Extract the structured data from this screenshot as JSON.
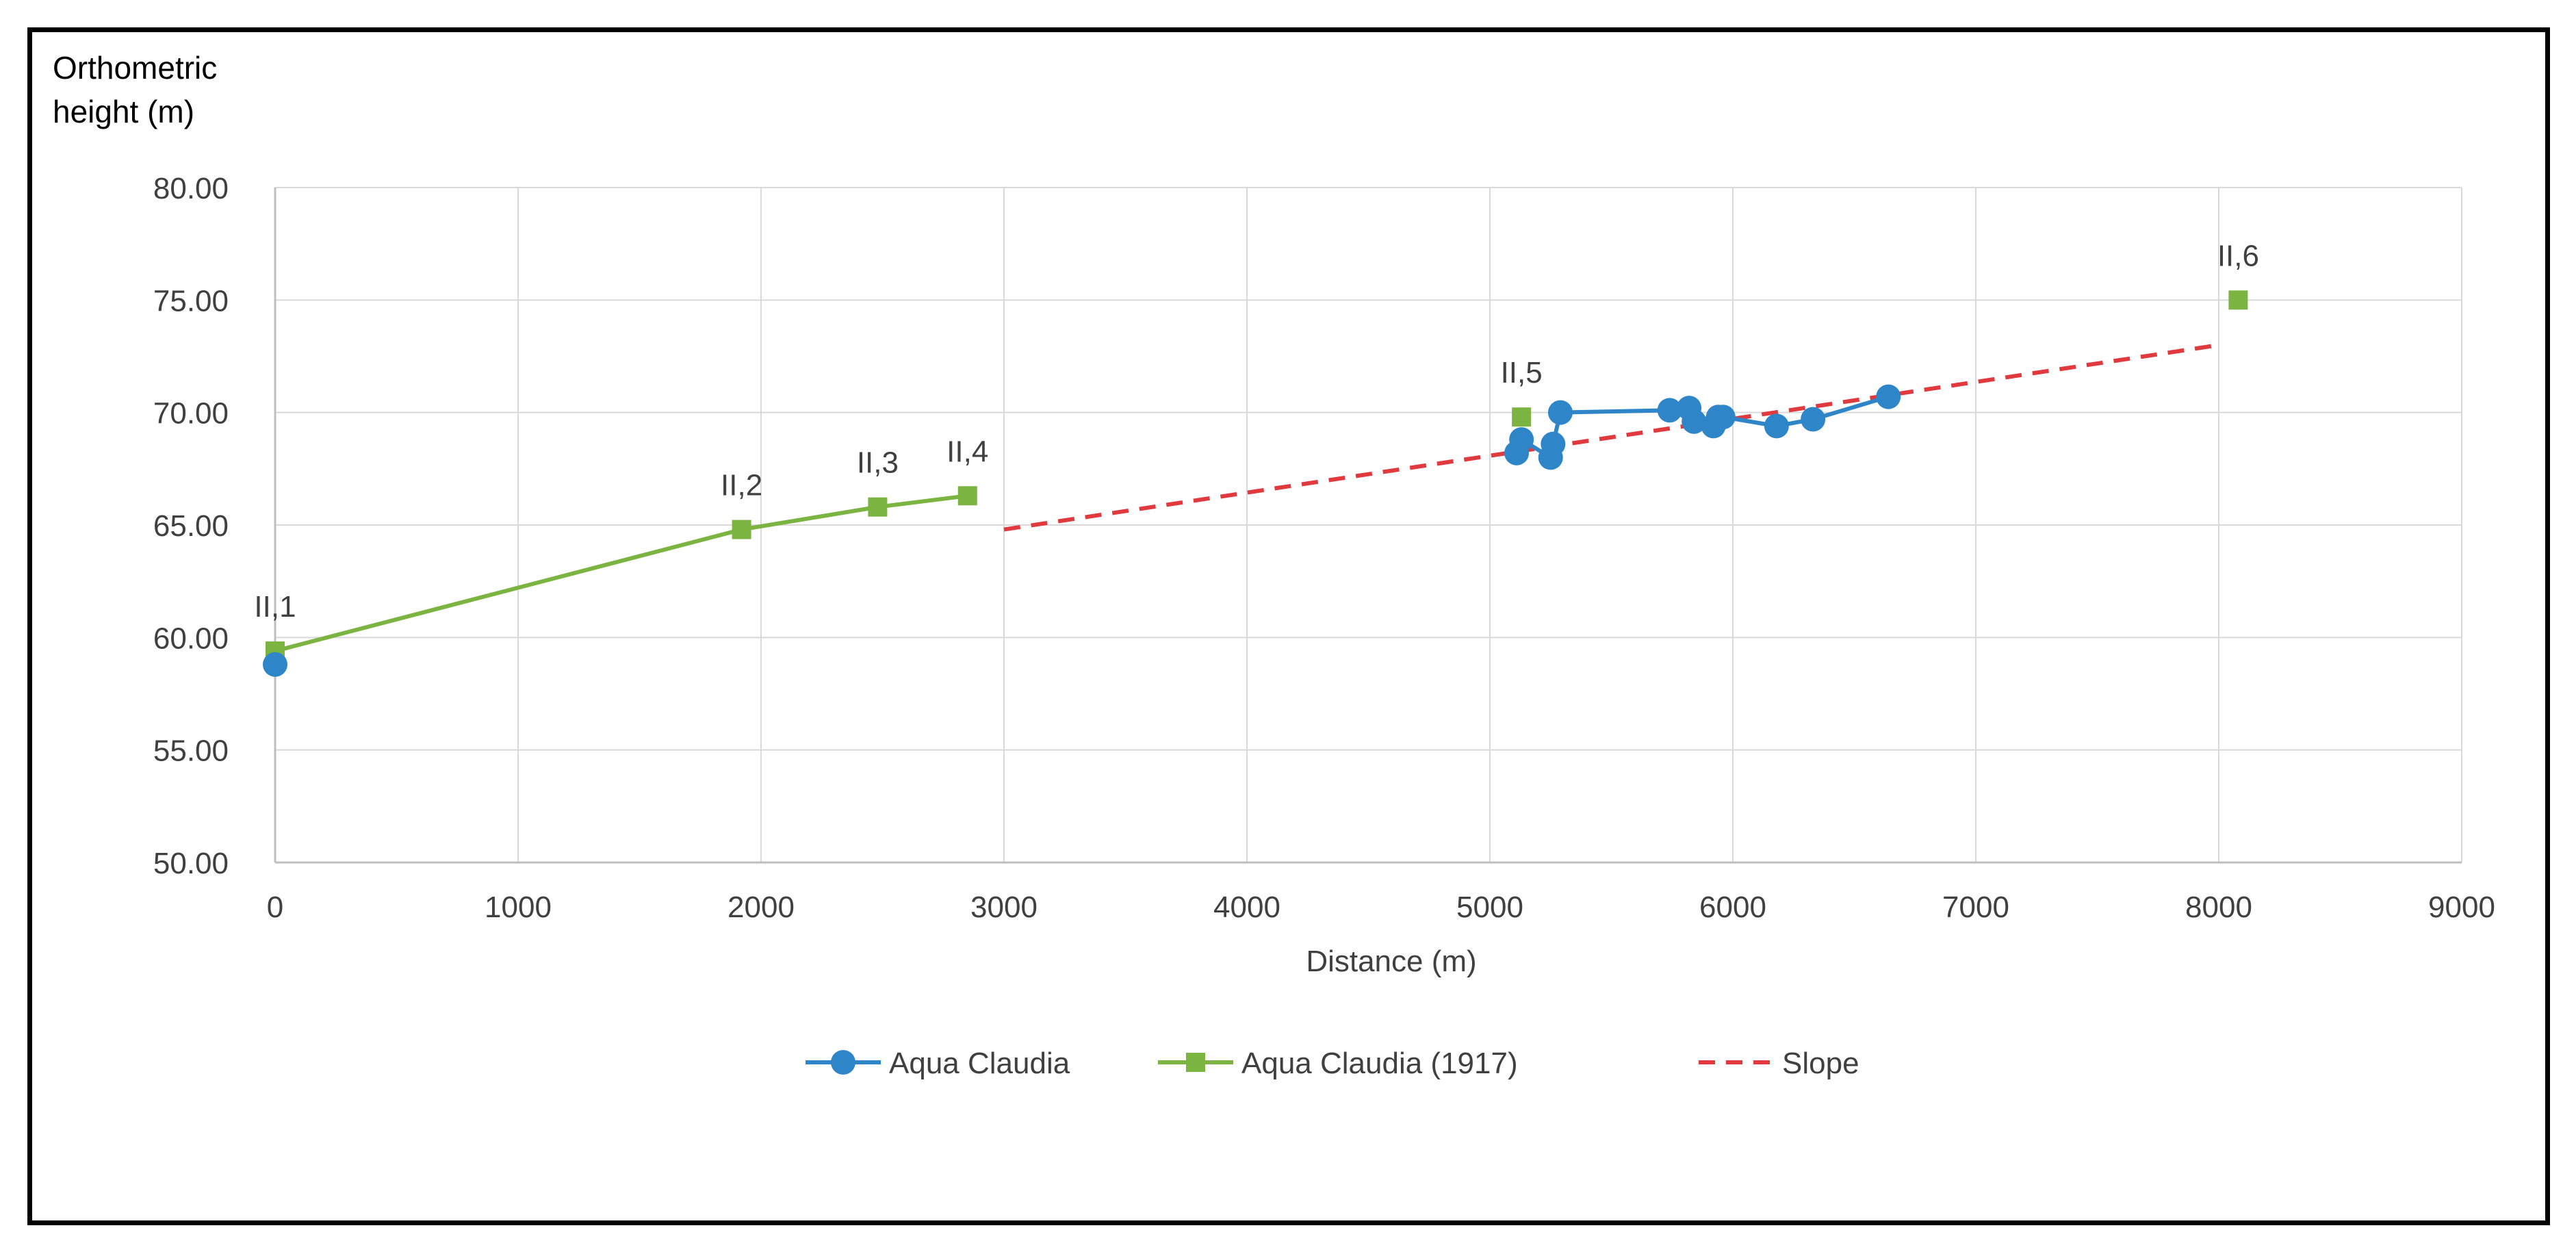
{
  "chart_data": {
    "type": "line",
    "ylabel": [
      "Orthometric",
      "height (m)"
    ],
    "xlabel": "Distance (m)",
    "xlim": [
      0,
      9000
    ],
    "ylim": [
      50,
      80
    ],
    "x_ticks": [
      "0",
      "1000",
      "2000",
      "3000",
      "4000",
      "5000",
      "6000",
      "7000",
      "8000",
      "9000"
    ],
    "y_ticks": [
      "50.00",
      "55.00",
      "60.00",
      "65.00",
      "70.00",
      "75.00",
      "80.00"
    ],
    "grid": true,
    "legend_position": "bottom",
    "series": [
      {
        "name": "Aqua Claudia",
        "color": "#2E86C8",
        "marker": "circle",
        "segments": [
          [
            [
              0,
              58.8
            ]
          ],
          [
            [
              5110,
              68.2
            ],
            [
              5130,
              68.8
            ],
            [
              5250,
              68.0
            ],
            [
              5260,
              68.6
            ],
            [
              5290,
              70.0
            ],
            [
              5740,
              70.1
            ],
            [
              5820,
              70.2
            ],
            [
              5840,
              69.6
            ],
            [
              5920,
              69.4
            ],
            [
              5940,
              69.8
            ],
            [
              5960,
              69.8
            ],
            [
              6180,
              69.4
            ],
            [
              6330,
              69.7
            ],
            [
              6640,
              70.7
            ]
          ]
        ]
      },
      {
        "name": "Aqua Claudia (1917)",
        "color": "#7CB442",
        "marker": "square",
        "segments": [
          [
            [
              0,
              59.4
            ],
            [
              1920,
              64.8
            ],
            [
              2480,
              65.8
            ],
            [
              2850,
              66.3
            ]
          ],
          [
            [
              5130,
              69.8
            ]
          ],
          [
            [
              8080,
              75.0
            ]
          ]
        ],
        "point_labels": [
          {
            "x": 0,
            "y": 59.4,
            "text": "II,1"
          },
          {
            "x": 1920,
            "y": 64.8,
            "text": "II,2"
          },
          {
            "x": 2480,
            "y": 65.8,
            "text": "II,3"
          },
          {
            "x": 2850,
            "y": 66.3,
            "text": "II,4"
          },
          {
            "x": 5130,
            "y": 69.8,
            "text": "II,5"
          },
          {
            "x": 8080,
            "y": 75.0,
            "text": "II,6"
          }
        ]
      },
      {
        "name": "Slope",
        "color": "#E0393E",
        "dashed": true,
        "segments": [
          [
            [
              3000,
              64.8
            ],
            [
              8000,
              73.0
            ]
          ]
        ]
      }
    ]
  }
}
